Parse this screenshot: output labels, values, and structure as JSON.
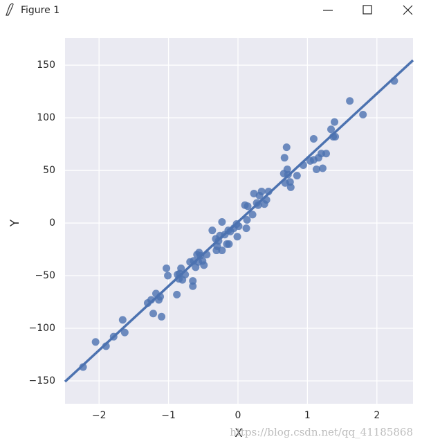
{
  "window": {
    "title": "Figure 1"
  },
  "watermark": "https://blog.csdn.net/qq_41185868",
  "chart_data": {
    "type": "scatter",
    "xlabel": "X",
    "ylabel": "Y",
    "color": "#4c72b0",
    "grid": true,
    "xlim": [
      -2.49,
      2.52
    ],
    "ylim": [
      -171.7,
      175.7
    ],
    "xticks": [
      {
        "value": -2,
        "label": "−2"
      },
      {
        "value": -1,
        "label": "−1"
      },
      0,
      1,
      2
    ],
    "yticks": [
      {
        "value": -150,
        "label": "−150"
      },
      {
        "value": -100,
        "label": "−100"
      },
      {
        "value": -50,
        "label": "−50"
      },
      0,
      50,
      100,
      150
    ],
    "x": [
      -2.23,
      -2.05,
      -1.9,
      -1.79,
      -1.66,
      -1.63,
      -1.3,
      -1.25,
      -1.22,
      -1.18,
      -1.14,
      -1.12,
      -1.1,
      -1.03,
      -1.01,
      -0.88,
      -0.87,
      -0.85,
      -0.84,
      -0.82,
      -0.8,
      -0.76,
      -0.69,
      -0.65,
      -0.65,
      -0.64,
      -0.61,
      -0.59,
      -0.57,
      -0.54,
      -0.56,
      -0.51,
      -0.49,
      -0.45,
      -0.37,
      -0.32,
      -0.31,
      -0.3,
      -0.28,
      -0.26,
      -0.23,
      -0.23,
      -0.19,
      -0.16,
      -0.14,
      -0.13,
      -0.11,
      -0.06,
      -0.02,
      -0.01,
      0.01,
      0.1,
      0.12,
      0.13,
      0.14,
      0.21,
      0.23,
      0.27,
      0.29,
      0.31,
      0.34,
      0.38,
      0.41,
      0.44,
      0.67,
      0.7,
      0.66,
      0.68,
      0.71,
      0.72,
      0.75,
      0.76,
      0.85,
      0.94,
      1.04,
      1.09,
      1.09,
      1.13,
      1.16,
      1.2,
      1.22,
      1.27,
      1.34,
      1.37,
      1.39,
      1.4,
      1.61,
      1.8,
      2.25
    ],
    "values": [
      -136.8,
      -113,
      -117,
      -108,
      -92,
      -104,
      -76,
      -73,
      -86,
      -67,
      -73,
      -70,
      -89,
      -43,
      -50,
      -68,
      -49,
      -53,
      -48,
      -43,
      -54,
      -49,
      -37,
      -55,
      -60,
      -36,
      -42,
      -30,
      -37,
      -31,
      -28,
      -36,
      -40,
      -30,
      -7,
      -15,
      -26,
      -22,
      -17,
      -12,
      -26,
      1,
      -11,
      -20,
      -7,
      -20,
      -8,
      -5,
      -1,
      -13,
      -3,
      17,
      -5,
      3,
      16,
      8,
      28,
      19,
      17,
      26,
      30,
      18,
      22,
      30,
      62,
      72,
      47,
      38,
      51,
      46,
      39,
      34,
      45,
      55,
      59,
      80,
      60,
      51,
      62,
      66,
      52,
      66,
      89,
      82,
      96,
      82,
      116,
      103,
      135
    ],
    "fit_line": {
      "x": [
        -2.49,
        2.52
      ],
      "values": [
        -150.7,
        154.6
      ]
    }
  }
}
